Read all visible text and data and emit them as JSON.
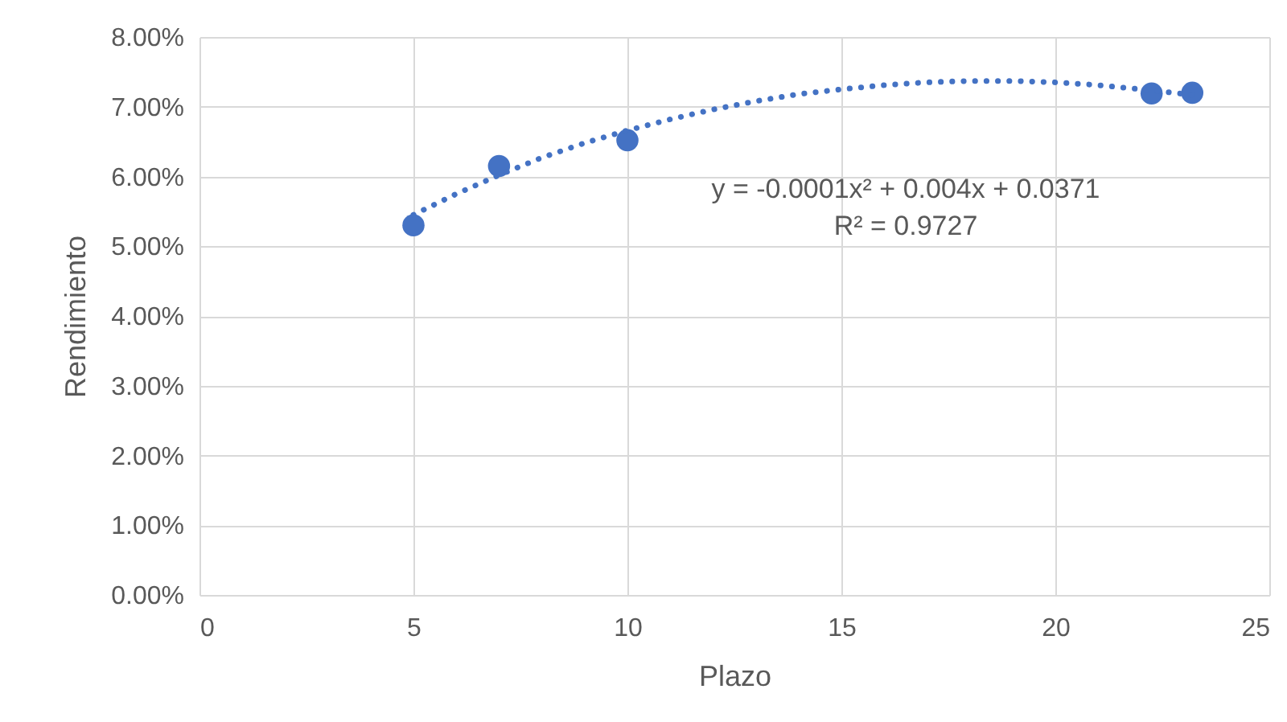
{
  "chart_data": {
    "type": "scatter",
    "xlabel": "Plazo",
    "ylabel": "Rendimiento",
    "series": [
      {
        "color": "#4472c4",
        "x": [
          5,
          7,
          10,
          22.25,
          23.2
        ],
        "values": [
          5.3,
          6.15,
          6.52,
          7.19,
          7.2
        ]
      },
      {
        "type": "line",
        "color": "#4472c4",
        "line_style": "dotted",
        "marker": "none",
        "x": [
          5,
          6,
          7,
          8,
          9,
          10,
          11,
          12,
          13,
          14,
          15,
          16,
          17,
          18,
          19,
          20,
          21,
          22,
          23.2
        ],
        "values": [
          5.45,
          5.75,
          6.02,
          6.27,
          6.48,
          6.66,
          6.82,
          6.96,
          7.08,
          7.18,
          7.25,
          7.31,
          7.35,
          7.37,
          7.37,
          7.35,
          7.31,
          7.25,
          7.17
        ]
      }
    ],
    "marker": "circle",
    "xlim": [
      0,
      25
    ],
    "xticks": [
      0,
      5,
      10,
      15,
      20,
      25
    ],
    "ylim": [
      0,
      8
    ],
    "yticks": [
      {
        "value": 0,
        "label": "0.00%"
      },
      {
        "value": 1,
        "label": "1.00%"
      },
      {
        "value": 2,
        "label": "2.00%"
      },
      {
        "value": 3,
        "label": "3.00%"
      },
      {
        "value": 4,
        "label": "4.00%"
      },
      {
        "value": 5,
        "label": "5.00%"
      },
      {
        "value": 6,
        "label": "6.00%"
      },
      {
        "value": 7,
        "label": "7.00%"
      },
      {
        "value": 8,
        "label": "8.00%"
      }
    ],
    "grid": true,
    "annotations": [
      "y = -0.0001x² + 0.004x + 0.0371",
      "R² = 0.9727"
    ]
  }
}
